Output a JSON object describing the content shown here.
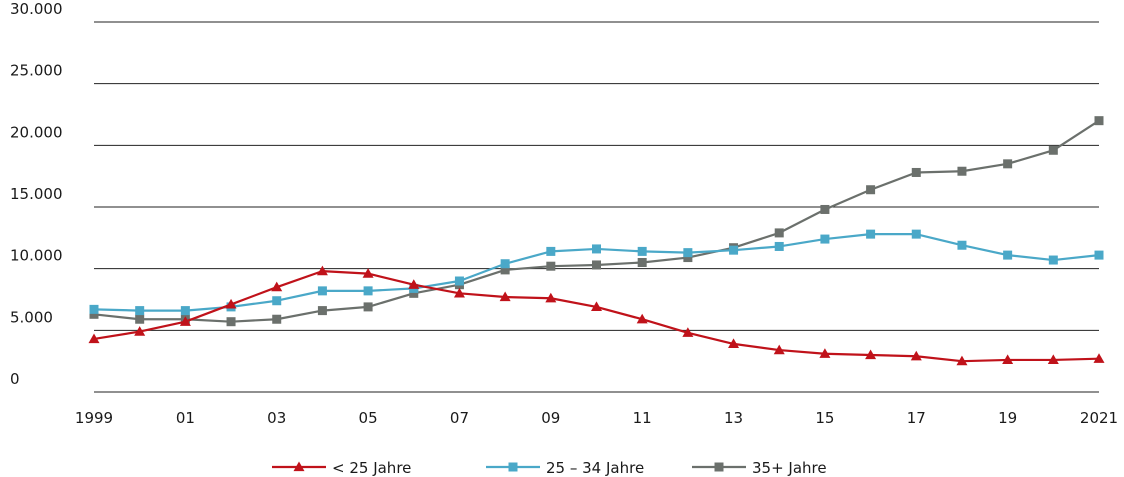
{
  "chart_data": {
    "type": "line",
    "title": "",
    "xlabel": "",
    "ylabel": "",
    "x": [
      1999,
      2000,
      2001,
      2002,
      2003,
      2004,
      2005,
      2006,
      2007,
      2008,
      2009,
      2010,
      2011,
      2012,
      2013,
      2014,
      2015,
      2016,
      2017,
      2018,
      2019,
      2020,
      2021
    ],
    "x_tick_labels": [
      "1999",
      "01",
      "03",
      "05",
      "07",
      "09",
      "11",
      "13",
      "15",
      "17",
      "19",
      "2021"
    ],
    "x_tick_values": [
      1999,
      2001,
      2003,
      2005,
      2007,
      2009,
      2011,
      2013,
      2015,
      2017,
      2019,
      2021
    ],
    "y_tick_labels": [
      "0",
      "5.000",
      "10.000",
      "15.000",
      "20.000",
      "25.000",
      "30.000"
    ],
    "y_tick_values": [
      0,
      5000,
      10000,
      15000,
      20000,
      25000,
      30000
    ],
    "ylim": [
      0,
      30000
    ],
    "grid": "horizontal",
    "legend_position": "bottom",
    "series": [
      {
        "name": "< 25 Jahre",
        "color": "#c0121a",
        "marker": "triangle",
        "values": [
          4300,
          4900,
          5700,
          7100,
          8500,
          9800,
          9600,
          8700,
          8000,
          7700,
          7600,
          6900,
          5900,
          4800,
          3900,
          3400,
          3100,
          3000,
          2900,
          2500,
          2600,
          2600,
          2700
        ]
      },
      {
        "name": "25 – 34 Jahre",
        "color": "#4aa8c8",
        "marker": "square",
        "values": [
          6700,
          6600,
          6600,
          6900,
          7400,
          8200,
          8200,
          8400,
          9000,
          10400,
          11400,
          11600,
          11400,
          11300,
          11500,
          11800,
          12400,
          12800,
          12800,
          11900,
          11100,
          10700,
          11100
        ]
      },
      {
        "name": "35+ Jahre",
        "color": "#6b706c",
        "marker": "square",
        "values": [
          6300,
          5900,
          5900,
          5700,
          5900,
          6600,
          6900,
          8000,
          8700,
          9900,
          10200,
          10300,
          10500,
          10900,
          11700,
          12900,
          14800,
          16400,
          17800,
          17900,
          18500,
          19600,
          22000
        ]
      }
    ]
  }
}
